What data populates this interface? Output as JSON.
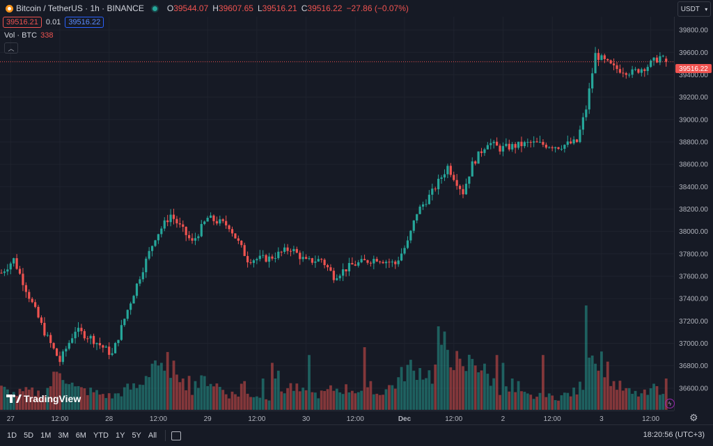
{
  "header": {
    "symbol": "Bitcoin / TetherUS · 1h · BINANCE",
    "ohlc": [
      {
        "k": "O",
        "v": "39544.07"
      },
      {
        "k": "H",
        "v": "39607.65"
      },
      {
        "k": "L",
        "v": "39516.21"
      },
      {
        "k": "C",
        "v": "39516.22"
      },
      {
        "k": "",
        "v": "−27.86 (−0.07%)"
      }
    ],
    "sell_price": "39516.21",
    "spread": "0.01",
    "buy_price": "39516.22",
    "volume_label": "Vol · BTC",
    "volume_value": "338",
    "currency": "USDT"
  },
  "bottom": {
    "ranges": [
      "1D",
      "5D",
      "1M",
      "3M",
      "6M",
      "YTD",
      "1Y",
      "5Y",
      "All"
    ],
    "clock": "18:20:56 (UTC+3)"
  },
  "brand": "TradingView",
  "colors": {
    "up": "#26a69a",
    "down": "#ef5350",
    "bg": "#161a25",
    "grid": "#232733"
  },
  "chart_data": {
    "type": "candlestick",
    "current_price": "39516.22",
    "ylim": [
      36400,
      39900
    ],
    "y_ticks": [
      "39800.00",
      "39600.00",
      "39400.00",
      "39200.00",
      "39000.00",
      "38800.00",
      "38600.00",
      "38400.00",
      "38200.00",
      "38000.00",
      "37800.00",
      "37600.00",
      "37400.00",
      "37200.00",
      "37000.00",
      "36800.00",
      "36600.00"
    ],
    "x_ticks": [
      "27",
      "12:00",
      "28",
      "12:00",
      "29",
      "12:00",
      "30",
      "12:00",
      "Dec",
      "12:00",
      "2",
      "12:00",
      "3",
      "12:00"
    ],
    "keypoints": [
      [
        37630,
        0
      ],
      [
        37750,
        4
      ],
      [
        37420,
        9
      ],
      [
        37100,
        14
      ],
      [
        36840,
        19
      ],
      [
        37120,
        24
      ],
      [
        37050,
        29
      ],
      [
        36900,
        36
      ],
      [
        37300,
        41
      ],
      [
        37600,
        45
      ],
      [
        37950,
        50
      ],
      [
        38150,
        55
      ],
      [
        37900,
        62
      ],
      [
        38120,
        67
      ],
      [
        38050,
        74
      ],
      [
        37750,
        80
      ],
      [
        37760,
        87
      ],
      [
        37850,
        94
      ],
      [
        37730,
        99
      ],
      [
        37750,
        104
      ],
      [
        37600,
        108
      ],
      [
        37700,
        114
      ],
      [
        37760,
        122
      ],
      [
        37710,
        128
      ],
      [
        37900,
        132
      ],
      [
        38170,
        135
      ],
      [
        38350,
        140
      ],
      [
        38580,
        145
      ],
      [
        38350,
        150
      ],
      [
        38600,
        153
      ],
      [
        38800,
        158
      ],
      [
        38740,
        162
      ],
      [
        38790,
        172
      ],
      [
        38760,
        181
      ],
      [
        38800,
        187
      ],
      [
        39100,
        190
      ],
      [
        39580,
        193
      ],
      [
        39460,
        199
      ],
      [
        39420,
        205
      ],
      [
        39480,
        210
      ],
      [
        39560,
        214
      ],
      [
        39520,
        216
      ]
    ],
    "volume": {
      "label": "Vol · BTC",
      "last": "338",
      "max": 400,
      "keypoints": [
        [
          80,
          0
        ],
        [
          60,
          4
        ],
        [
          70,
          9
        ],
        [
          60,
          14
        ],
        [
          160,
          19
        ],
        [
          80,
          24
        ],
        [
          70,
          29
        ],
        [
          50,
          36
        ],
        [
          80,
          41
        ],
        [
          90,
          45
        ],
        [
          200,
          50
        ],
        [
          170,
          55
        ],
        [
          80,
          62
        ],
        [
          120,
          67
        ],
        [
          60,
          74
        ],
        [
          60,
          80
        ],
        [
          50,
          87
        ],
        [
          90,
          94
        ],
        [
          60,
          99
        ],
        [
          60,
          104
        ],
        [
          80,
          108
        ],
        [
          80,
          114
        ],
        [
          60,
          122
        ],
        [
          100,
          128
        ],
        [
          160,
          132
        ],
        [
          160,
          135
        ],
        [
          130,
          140
        ],
        [
          240,
          145
        ],
        [
          140,
          150
        ],
        [
          200,
          153
        ],
        [
          130,
          158
        ],
        [
          80,
          162
        ],
        [
          50,
          172
        ],
        [
          50,
          181
        ],
        [
          70,
          187
        ],
        [
          120,
          190
        ],
        [
          250,
          193
        ],
        [
          100,
          199
        ],
        [
          60,
          205
        ],
        [
          60,
          210
        ],
        [
          80,
          214
        ],
        [
          90,
          216
        ]
      ],
      "spikes": [
        [
          51,
          170
        ],
        [
          52,
          180
        ],
        [
          53,
          150
        ],
        [
          57,
          135
        ],
        [
          59,
          120
        ],
        [
          61,
          130
        ],
        [
          63,
          110
        ],
        [
          78,
          100
        ],
        [
          79,
          110
        ],
        [
          85,
          120
        ],
        [
          88,
          180
        ],
        [
          89,
          120
        ],
        [
          90,
          150
        ],
        [
          100,
          210
        ],
        [
          120,
          110
        ],
        [
          144,
          300
        ],
        [
          154,
          170
        ],
        [
          190,
          400
        ],
        [
          191,
          200
        ],
        [
          212,
          100
        ],
        [
          216,
          120
        ],
        [
          118,
          240
        ],
        [
          134,
          150
        ],
        [
          136,
          160
        ],
        [
          142,
          320
        ],
        [
          161,
          210
        ],
        [
          163,
          180
        ],
        [
          166,
          120
        ],
        [
          168,
          110
        ],
        [
          176,
          210
        ],
        [
          194,
          150
        ]
      ]
    }
  }
}
